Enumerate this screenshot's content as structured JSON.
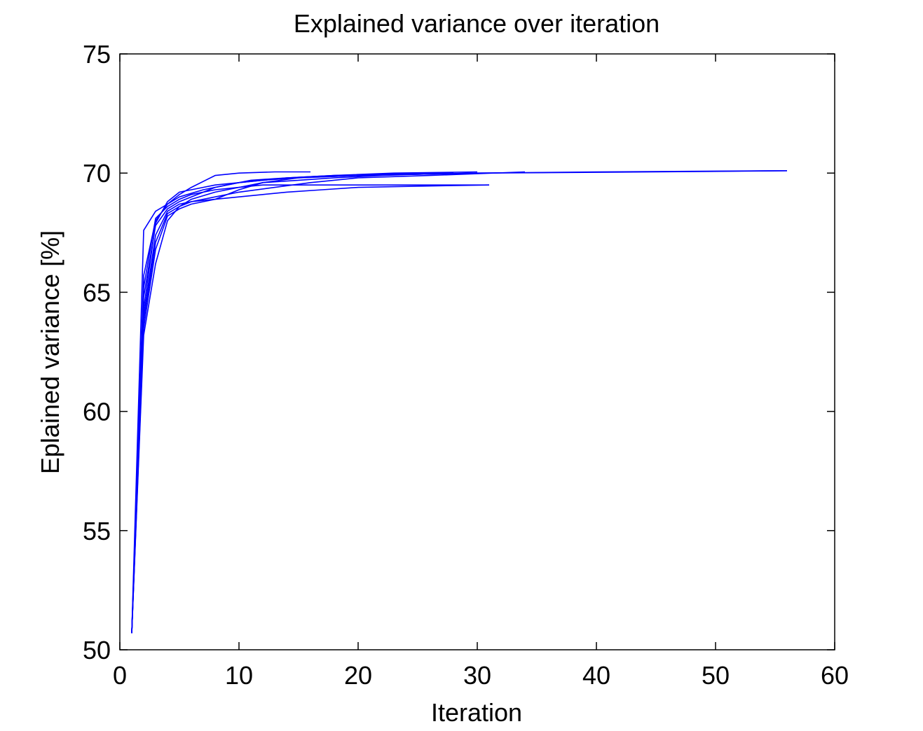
{
  "chart_data": {
    "type": "line",
    "title": "Explained variance over iteration",
    "xlabel": "Iteration",
    "ylabel": "Eplained variance [%]",
    "xlim": [
      0,
      60
    ],
    "ylim": [
      50,
      75
    ],
    "xticks": [
      0,
      10,
      20,
      30,
      40,
      50,
      60
    ],
    "yticks": [
      50,
      55,
      60,
      65,
      70,
      75
    ],
    "grid": false,
    "legend": "none",
    "line_color": "#0000ff",
    "series": [
      {
        "x": [
          1,
          2,
          3,
          4,
          5,
          6,
          8,
          10,
          13,
          16
        ],
        "y": [
          50.7,
          67.6,
          68.4,
          68.7,
          69.1,
          69.4,
          69.9,
          70.0,
          70.05,
          70.05
        ]
      },
      {
        "x": [
          1,
          2,
          3,
          4,
          5,
          6,
          8,
          10,
          12,
          15,
          20,
          30,
          40,
          56
        ],
        "y": [
          50.7,
          64.3,
          67.9,
          68.8,
          69.2,
          69.3,
          69.5,
          69.6,
          69.7,
          69.8,
          69.9,
          70.0,
          70.05,
          70.1
        ]
      },
      {
        "x": [
          1,
          2,
          3,
          4,
          5,
          6,
          8,
          10,
          12,
          14,
          17,
          20,
          25,
          31
        ],
        "y": [
          50.7,
          63.2,
          66.2,
          68.0,
          68.6,
          68.8,
          68.9,
          69.0,
          69.1,
          69.2,
          69.3,
          69.4,
          69.45,
          69.5
        ]
      },
      {
        "x": [
          1,
          2,
          3,
          4,
          5,
          6,
          8,
          10,
          12,
          14,
          16,
          18,
          22,
          27
        ],
        "y": [
          50.7,
          64.8,
          67.8,
          68.5,
          68.8,
          69.0,
          69.4,
          69.6,
          69.7,
          69.8,
          69.85,
          69.9,
          69.95,
          70.0
        ]
      },
      {
        "x": [
          1,
          2,
          3,
          4,
          5,
          6,
          8,
          10,
          12,
          15,
          18,
          22,
          28
        ],
        "y": [
          50.7,
          63.8,
          67.1,
          68.3,
          68.6,
          68.9,
          69.2,
          69.4,
          69.6,
          69.7,
          69.8,
          69.9,
          70.0
        ]
      },
      {
        "x": [
          1,
          2,
          3,
          4,
          5,
          6,
          8,
          10,
          13,
          16,
          20,
          26,
          34
        ],
        "y": [
          50.7,
          64.0,
          67.4,
          68.4,
          68.7,
          68.8,
          69.0,
          69.2,
          69.4,
          69.6,
          69.8,
          69.9,
          70.05
        ]
      },
      {
        "x": [
          1,
          2,
          3,
          4,
          5,
          6,
          8,
          10,
          12,
          14,
          18,
          24,
          31
        ],
        "y": [
          50.7,
          65.2,
          68.1,
          68.6,
          68.9,
          69.1,
          69.3,
          69.4,
          69.5,
          69.5,
          69.5,
          69.5,
          69.5
        ]
      },
      {
        "x": [
          1,
          2,
          3,
          4,
          5,
          6,
          8,
          10,
          12,
          15,
          20,
          30,
          45,
          56
        ],
        "y": [
          50.7,
          63.5,
          66.8,
          68.2,
          68.5,
          68.7,
          68.9,
          69.3,
          69.6,
          69.8,
          69.9,
          70.0,
          70.05,
          70.1
        ]
      },
      {
        "x": [
          1,
          2,
          3,
          4,
          5,
          7,
          9,
          11,
          14,
          18,
          23,
          30
        ],
        "y": [
          50.7,
          65.7,
          68.0,
          68.7,
          69.0,
          69.3,
          69.5,
          69.7,
          69.8,
          69.9,
          70.0,
          70.05
        ]
      }
    ]
  }
}
